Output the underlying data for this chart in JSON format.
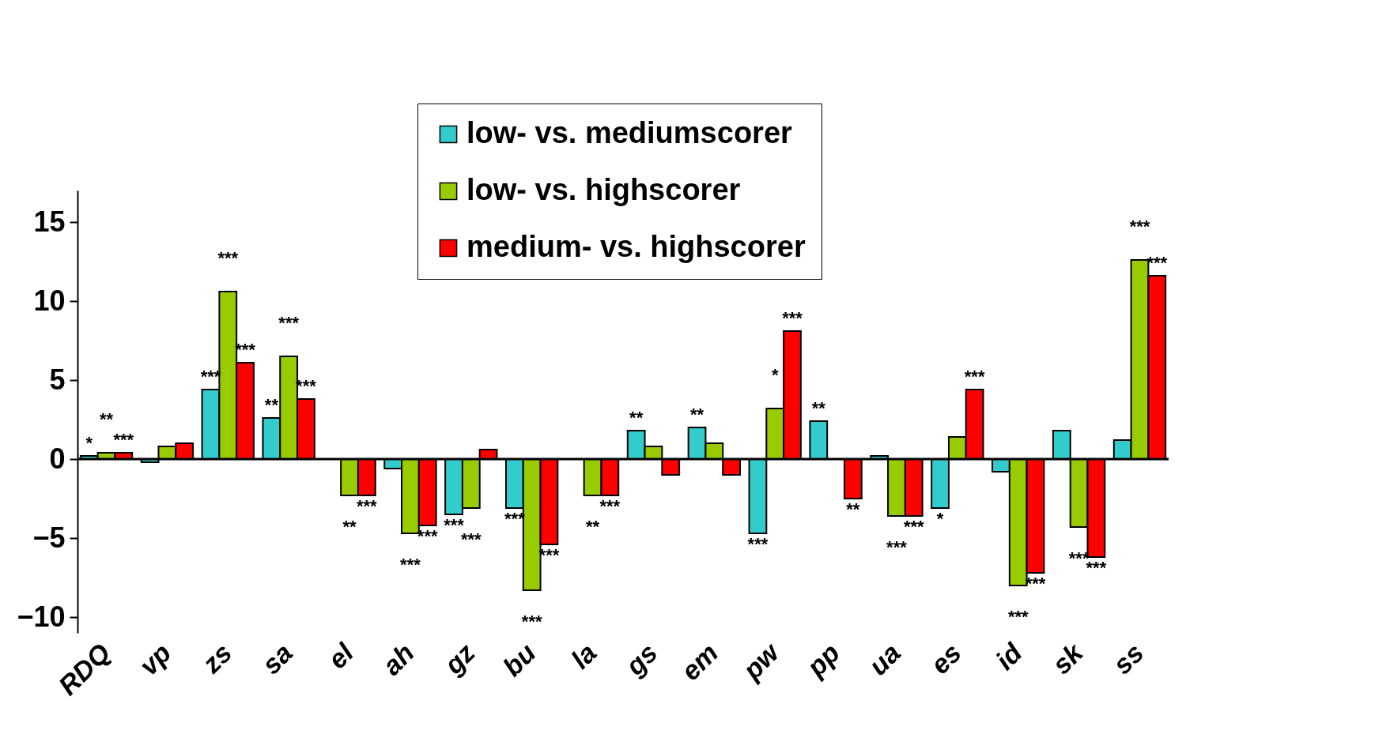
{
  "chart_data": {
    "type": "bar",
    "categories": [
      "RDQ",
      "vp",
      "zs",
      "sa",
      "el",
      "ah",
      "gz",
      "bu",
      "la",
      "gs",
      "em",
      "pw",
      "pp",
      "ua",
      "es",
      "id",
      "sk",
      "ss"
    ],
    "series": [
      {
        "name": "low- vs. mediumscorer",
        "color": "#33cccc",
        "values": [
          0.2,
          -0.2,
          4.4,
          2.6,
          null,
          -0.6,
          -3.5,
          -3.1,
          null,
          1.8,
          2.0,
          -4.7,
          2.4,
          0.2,
          -3.1,
          -0.8,
          1.8,
          1.2
        ],
        "value_labels": [
          "*",
          null,
          "***",
          "**",
          null,
          null,
          "***",
          "***",
          null,
          "**",
          "**",
          "***",
          "**",
          null,
          "*",
          null,
          null,
          null
        ]
      },
      {
        "name": "low- vs. highscorer",
        "color": "#99cc00",
        "values": [
          0.4,
          0.8,
          10.6,
          6.5,
          -2.3,
          -4.7,
          -3.1,
          -8.3,
          -2.3,
          0.8,
          1.0,
          3.2,
          null,
          -3.6,
          1.4,
          -8.0,
          -4.3,
          12.6
        ],
        "value_labels": [
          "**",
          null,
          "***",
          "***",
          "**",
          "***",
          "***",
          "***",
          "**",
          null,
          null,
          "*",
          null,
          "***",
          null,
          "***",
          "***",
          "***"
        ]
      },
      {
        "name": "medium- vs. highscorer",
        "color": "#ff0000",
        "values": [
          0.4,
          1.0,
          6.1,
          3.8,
          -2.3,
          -4.2,
          0.6,
          -5.4,
          -2.3,
          -1.0,
          -1.0,
          8.1,
          -2.5,
          -3.6,
          4.4,
          -7.2,
          -6.2,
          11.6
        ],
        "value_labels": [
          "***",
          null,
          "***",
          "***",
          "***",
          "***",
          null,
          "***",
          "***",
          null,
          null,
          "***",
          "**",
          "***",
          "***",
          "***",
          "***",
          "***"
        ]
      }
    ],
    "ylim": [
      -11,
      17
    ],
    "yticks": [
      -10,
      -5,
      0,
      5,
      10,
      15
    ],
    "legend": "top"
  }
}
